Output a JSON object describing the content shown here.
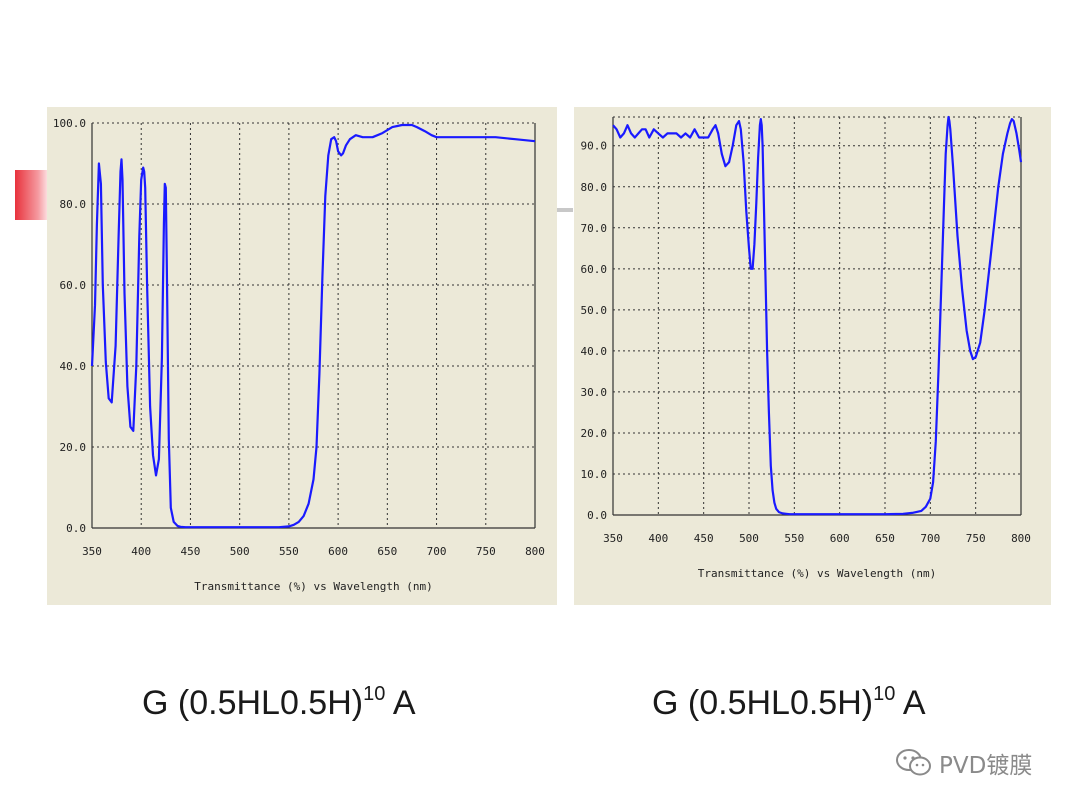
{
  "captions": {
    "left": {
      "prefix": "G (0.5HL0.5H)",
      "exp": "10",
      "suffix": " A"
    },
    "right": {
      "prefix": "G  (0.5HL0.5H)",
      "exp": "10",
      "suffix": " A"
    }
  },
  "watermark": {
    "text": "PVD镀膜",
    "icon": "wechat-icon"
  },
  "colors": {
    "curve": "#1a1aff",
    "panel": "#ece9d8",
    "grid": "#333333"
  },
  "chart_data": [
    {
      "type": "line",
      "xlabel": "Transmittance (%)  vs  Wavelength (nm)",
      "ylabel": "",
      "xlim": [
        350,
        800
      ],
      "ylim": [
        0,
        100
      ],
      "x_ticks": [
        350,
        400,
        450,
        500,
        550,
        600,
        650,
        700,
        750,
        800
      ],
      "x_tick_labels": [
        "350",
        "400",
        "450",
        "500",
        "550",
        "600",
        "650",
        "700",
        "750",
        "800"
      ],
      "y_ticks": [
        0,
        20,
        40,
        60,
        80,
        100
      ],
      "y_tick_labels": [
        "0.0",
        "20.0",
        "40.0",
        "60.0",
        "80.0",
        "100.0"
      ],
      "grid": true,
      "series": [
        {
          "x": [
            350,
            353,
            355,
            357,
            359,
            361,
            364,
            367,
            370,
            374,
            377,
            379,
            380,
            381,
            383,
            386,
            389,
            392,
            395,
            398,
            400,
            402,
            403,
            404,
            406,
            409,
            412,
            415,
            418,
            421,
            423,
            424,
            425,
            426,
            428,
            430,
            433,
            437,
            440,
            445,
            450,
            500,
            540,
            550,
            555,
            560,
            565,
            570,
            575,
            578,
            581,
            584,
            587,
            590,
            593,
            596,
            598,
            600,
            603,
            605,
            608,
            612,
            618,
            625,
            635,
            645,
            655,
            665,
            675,
            680,
            688,
            695,
            700,
            710,
            720,
            740,
            760,
            780,
            800
          ],
          "y": [
            40,
            55,
            75,
            90,
            85,
            60,
            41,
            32,
            31,
            45,
            72,
            88,
            91,
            86,
            58,
            35,
            25,
            24,
            40,
            72,
            86,
            89,
            88,
            84,
            60,
            30,
            18,
            13,
            17,
            42,
            75,
            85,
            84,
            65,
            22,
            5,
            1.5,
            0.5,
            0.3,
            0.2,
            0.2,
            0.2,
            0.2,
            0.4,
            0.8,
            1.5,
            3,
            6,
            12,
            20,
            38,
            62,
            82,
            92,
            96,
            96.5,
            95.5,
            93,
            92,
            92.5,
            94.5,
            96,
            97,
            96.5,
            96.5,
            97.5,
            99,
            99.5,
            99.5,
            99,
            98,
            97,
            96.5,
            96.5,
            96.5,
            96.5,
            96.5,
            96,
            95.5
          ]
        }
      ]
    },
    {
      "type": "line",
      "xlabel": "Transmittance (%)  vs  Wavelength (nm)",
      "ylabel": "",
      "xlim": [
        350,
        800
      ],
      "ylim": [
        0,
        97
      ],
      "x_ticks": [
        350,
        400,
        450,
        500,
        550,
        600,
        650,
        700,
        750,
        800
      ],
      "x_tick_labels": [
        "350",
        "400",
        "450",
        "500",
        "550",
        "600",
        "650",
        "700",
        "750",
        "800"
      ],
      "y_ticks": [
        0,
        10,
        20,
        30,
        40,
        50,
        60,
        70,
        80,
        90
      ],
      "y_tick_labels": [
        "0.0",
        "10.0",
        "20.0",
        "30.0",
        "40.0",
        "50.0",
        "60.0",
        "70.0",
        "80.0",
        "90.0"
      ],
      "grid": true,
      "series": [
        {
          "x": [
            350,
            354,
            358,
            362,
            366,
            370,
            374,
            378,
            382,
            386,
            390,
            395,
            400,
            405,
            410,
            415,
            420,
            425,
            430,
            435,
            440,
            445,
            450,
            455,
            460,
            463,
            466,
            470,
            474,
            478,
            482,
            486,
            489,
            491,
            494,
            497,
            500,
            502,
            504,
            506,
            508,
            510,
            512,
            513,
            514,
            515,
            516,
            518,
            520,
            522,
            524,
            526,
            528,
            530,
            533,
            537,
            541,
            545,
            550,
            560,
            600,
            650,
            670,
            680,
            690,
            695,
            700,
            703,
            706,
            709,
            712,
            715,
            717,
            719,
            720,
            721,
            722,
            725,
            730,
            735,
            740,
            744,
            747,
            750,
            755,
            760,
            765,
            770,
            775,
            780,
            785,
            788,
            790,
            792,
            795,
            798,
            800
          ],
          "y": [
            95,
            94,
            92,
            93,
            95,
            93,
            92,
            93,
            94,
            94,
            92,
            94,
            93,
            92,
            93,
            93,
            93,
            92,
            93,
            92,
            94,
            92,
            92,
            92,
            94,
            95,
            93,
            88,
            85,
            86,
            90,
            95,
            96,
            94,
            86,
            74,
            65,
            60,
            60,
            66,
            76,
            87,
            95,
            96.5,
            95,
            90,
            80,
            60,
            40,
            25,
            12,
            6,
            3,
            1.5,
            0.7,
            0.4,
            0.3,
            0.2,
            0.2,
            0.2,
            0.2,
            0.2,
            0.3,
            0.5,
            1,
            2,
            4,
            8,
            18,
            35,
            55,
            75,
            88,
            95,
            97,
            96,
            94,
            85,
            68,
            55,
            45,
            40,
            38,
            38.5,
            42,
            50,
            60,
            70,
            80,
            88,
            93,
            95.5,
            96.5,
            96,
            93,
            89,
            86
          ]
        }
      ]
    }
  ]
}
